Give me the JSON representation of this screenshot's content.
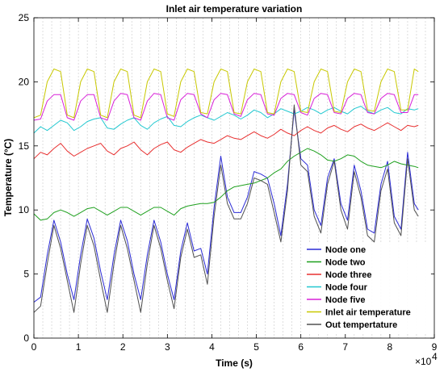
{
  "chart_data": {
    "type": "line",
    "title": "Inlet air temperature variation",
    "xlabel": "Time (s)",
    "ylabel": "Temperature (°C)",
    "x_exponent_label": "×10",
    "x_exponent_power": "4",
    "xlim": [
      0,
      90000
    ],
    "ylim": [
      0,
      25
    ],
    "x_ticks": [
      0,
      10000,
      20000,
      30000,
      40000,
      50000,
      60000,
      70000,
      80000,
      90000
    ],
    "x_tick_labels": [
      "0",
      "1",
      "2",
      "3",
      "4",
      "5",
      "6",
      "7",
      "8",
      "9"
    ],
    "y_ticks": [
      0,
      5,
      10,
      15,
      20,
      25
    ],
    "y_tick_labels": [
      "0",
      "5",
      "10",
      "15",
      "20",
      "25"
    ],
    "grid": "vertical-dashed",
    "legend_position": "bottom-right",
    "x": [
      0,
      1500,
      3000,
      4500,
      6000,
      7500,
      9000,
      10500,
      12000,
      13500,
      15000,
      16500,
      18000,
      19500,
      21000,
      22500,
      24000,
      25500,
      27000,
      28500,
      30000,
      31500,
      33000,
      34500,
      36000,
      37500,
      39000,
      40500,
      42000,
      43500,
      45000,
      46500,
      48000,
      49500,
      51000,
      52500,
      54000,
      55500,
      57000,
      58500,
      60000,
      61500,
      63000,
      64500,
      66000,
      67500,
      69000,
      70500,
      72000,
      73500,
      75000,
      76500,
      78000,
      79500,
      81000,
      82500,
      84000,
      85500,
      86400
    ],
    "series": [
      {
        "name": "Node one",
        "color": "#2b2bd6",
        "values": [
          2.8,
          3.2,
          6.5,
          9.2,
          7.5,
          5.0,
          3.0,
          6.5,
          9.3,
          7.8,
          5.2,
          3.0,
          6.5,
          9.2,
          7.6,
          5.0,
          3.0,
          6.5,
          9.2,
          7.5,
          5.0,
          3.0,
          6.8,
          9.0,
          6.8,
          7.0,
          5.0,
          10.2,
          14.2,
          11.0,
          9.8,
          9.8,
          11.0,
          13.0,
          12.8,
          12.5,
          10.5,
          8.0,
          12.0,
          17.8,
          14.0,
          13.5,
          10.0,
          8.8,
          12.5,
          14.0,
          10.5,
          9.2,
          13.5,
          11.5,
          8.5,
          8.2,
          12.0,
          13.8,
          9.5,
          8.5,
          14.5,
          10.5,
          10.0
        ]
      },
      {
        "name": "Node two",
        "color": "#1ea01e",
        "values": [
          9.7,
          9.2,
          9.3,
          9.8,
          10.0,
          9.8,
          9.5,
          9.8,
          10.1,
          10.2,
          9.9,
          9.6,
          9.9,
          10.2,
          10.2,
          9.9,
          9.6,
          9.9,
          10.2,
          10.2,
          9.9,
          9.6,
          10.1,
          10.3,
          10.4,
          10.5,
          10.5,
          10.6,
          11.0,
          11.5,
          11.8,
          11.9,
          12.0,
          12.1,
          12.3,
          12.5,
          12.9,
          13.2,
          13.8,
          14.2,
          14.5,
          14.8,
          14.6,
          14.3,
          13.9,
          13.8,
          14.0,
          14.3,
          14.2,
          13.8,
          13.5,
          13.4,
          13.3,
          13.5,
          13.8,
          13.6,
          13.5,
          13.4,
          13.3
        ]
      },
      {
        "name": "Node three",
        "color": "#e83030",
        "values": [
          14.0,
          14.5,
          14.3,
          14.8,
          15.2,
          14.6,
          14.2,
          14.5,
          14.8,
          15.0,
          15.2,
          14.6,
          14.3,
          14.8,
          15.0,
          15.3,
          14.7,
          14.3,
          14.8,
          15.1,
          15.3,
          14.7,
          14.5,
          14.9,
          15.2,
          15.5,
          15.3,
          15.2,
          15.5,
          15.8,
          15.6,
          15.5,
          15.8,
          16.1,
          15.8,
          15.6,
          15.9,
          16.3,
          16.0,
          15.8,
          16.2,
          16.5,
          16.2,
          16.0,
          16.4,
          16.6,
          16.3,
          16.1,
          16.5,
          16.7,
          16.4,
          16.2,
          16.5,
          16.8,
          16.5,
          16.2,
          16.6,
          16.5,
          16.6
        ]
      },
      {
        "name": "Node four",
        "color": "#22c8d0",
        "values": [
          16.0,
          16.5,
          16.2,
          16.6,
          17.0,
          16.8,
          16.2,
          16.5,
          16.9,
          17.1,
          17.2,
          16.4,
          16.3,
          16.7,
          17.0,
          17.2,
          16.6,
          16.3,
          16.8,
          17.1,
          17.3,
          16.6,
          16.5,
          16.9,
          17.2,
          17.4,
          17.2,
          17.0,
          17.3,
          17.6,
          17.4,
          17.1,
          17.4,
          17.8,
          17.6,
          17.2,
          17.5,
          17.9,
          17.7,
          17.5,
          17.7,
          18.0,
          17.8,
          17.5,
          17.8,
          18.0,
          17.7,
          17.5,
          17.9,
          18.1,
          17.7,
          17.5,
          17.8,
          18.0,
          17.6,
          17.5,
          17.9,
          17.8,
          17.9
        ]
      },
      {
        "name": "Node five",
        "color": "#d820d8",
        "values": [
          17.0,
          17.1,
          18.5,
          19.0,
          19.0,
          17.2,
          17.0,
          18.5,
          19.0,
          19.0,
          17.2,
          17.0,
          18.5,
          19.1,
          19.0,
          17.2,
          17.0,
          18.5,
          19.1,
          19.0,
          17.2,
          17.0,
          18.6,
          19.1,
          19.0,
          17.5,
          17.2,
          18.6,
          19.1,
          19.0,
          17.5,
          17.3,
          18.6,
          19.1,
          19.0,
          17.5,
          17.4,
          18.7,
          19.1,
          19.0,
          17.6,
          17.4,
          18.7,
          19.1,
          19.0,
          17.6,
          17.5,
          18.7,
          19.1,
          19.0,
          17.6,
          17.5,
          18.7,
          19.1,
          19.0,
          17.6,
          17.6,
          19.0,
          19.0
        ]
      },
      {
        "name": "Inlet air temperature",
        "color": "#c8c800",
        "values": [
          17.2,
          17.4,
          20.0,
          21.0,
          20.8,
          17.4,
          17.2,
          20.0,
          21.0,
          20.8,
          17.4,
          17.2,
          20.0,
          21.0,
          20.8,
          17.4,
          17.2,
          20.0,
          21.0,
          20.8,
          17.5,
          17.3,
          20.0,
          21.0,
          20.8,
          17.6,
          17.5,
          20.0,
          21.0,
          20.8,
          17.6,
          17.5,
          20.0,
          21.0,
          20.8,
          17.6,
          17.5,
          20.0,
          21.0,
          20.8,
          17.7,
          17.6,
          20.0,
          21.0,
          20.8,
          17.7,
          17.6,
          20.0,
          21.0,
          20.8,
          17.8,
          17.7,
          20.0,
          21.0,
          20.8,
          17.8,
          17.8,
          21.0,
          20.8
        ]
      },
      {
        "name": "Out tempertature",
        "color": "#505050",
        "values": [
          2.0,
          2.5,
          5.8,
          8.8,
          7.0,
          4.5,
          2.0,
          5.8,
          8.8,
          7.2,
          4.5,
          2.0,
          5.8,
          8.8,
          7.0,
          4.5,
          2.0,
          5.8,
          8.8,
          7.0,
          4.5,
          2.3,
          6.3,
          8.5,
          6.3,
          6.5,
          4.2,
          9.5,
          13.5,
          10.5,
          9.3,
          9.3,
          10.5,
          12.5,
          12.3,
          12.0,
          9.8,
          7.5,
          11.5,
          18.2,
          13.5,
          13.0,
          9.5,
          8.2,
          12.0,
          13.8,
          10.0,
          8.5,
          13.0,
          11.0,
          8.0,
          7.5,
          11.5,
          13.2,
          9.0,
          8.0,
          14.0,
          10.0,
          9.5
        ]
      }
    ]
  }
}
